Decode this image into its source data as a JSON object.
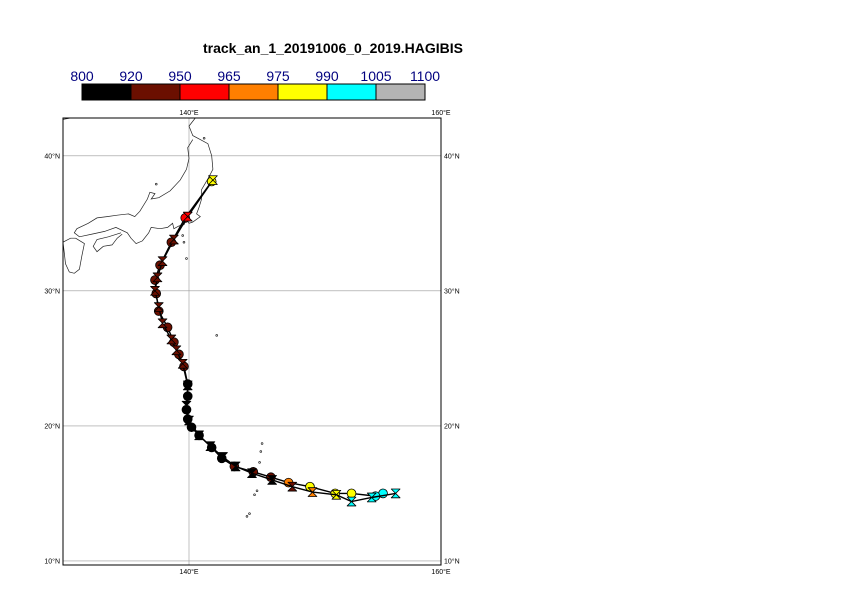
{
  "title": "track_an_1_20191006_0_2019.HAGIBIS",
  "colorbar": {
    "labels": [
      "800",
      "920",
      "950",
      "965",
      "975",
      "990",
      "1005",
      "1100"
    ],
    "colors": [
      "#000000",
      "#6b0f00",
      "#ff0000",
      "#ff7f00",
      "#ffff00",
      "#00ffff",
      "#b4b4b4"
    ]
  },
  "map": {
    "lon_range": [
      130,
      160
    ],
    "lat_range": [
      9.7,
      42.8
    ],
    "lon_ticks": [
      {
        "value": 140,
        "label": "140°E"
      },
      {
        "value": 160,
        "label": "160°E"
      }
    ],
    "lat_ticks": [
      {
        "value": 10,
        "label": "10°N"
      },
      {
        "value": 20,
        "label": "20°N"
      },
      {
        "value": 30,
        "label": "30°N"
      },
      {
        "value": 40,
        "label": "40°N"
      }
    ],
    "grid": true
  },
  "chart_data": {
    "type": "track",
    "track_a": {
      "marker": "circle",
      "points": [
        {
          "lon": 155.4,
          "lat": 15.0,
          "c": 5
        },
        {
          "lon": 154.8,
          "lat": 14.8,
          "c": 5
        },
        {
          "lon": 152.9,
          "lat": 15.0,
          "c": 4
        },
        {
          "lon": 151.6,
          "lat": 15.0,
          "c": 4
        },
        {
          "lon": 149.6,
          "lat": 15.5,
          "c": 4
        },
        {
          "lon": 147.9,
          "lat": 15.8,
          "c": 3
        },
        {
          "lon": 146.5,
          "lat": 16.2,
          "c": 1
        },
        {
          "lon": 145.1,
          "lat": 16.6,
          "c": 1
        },
        {
          "lon": 143.6,
          "lat": 17.0,
          "c": 1
        },
        {
          "lon": 142.6,
          "lat": 17.6,
          "c": 0
        },
        {
          "lon": 141.8,
          "lat": 18.4,
          "c": 0
        },
        {
          "lon": 140.8,
          "lat": 19.3,
          "c": 0
        },
        {
          "lon": 140.2,
          "lat": 19.9,
          "c": 0
        },
        {
          "lon": 139.9,
          "lat": 20.5,
          "c": 0
        },
        {
          "lon": 139.8,
          "lat": 21.2,
          "c": 0
        },
        {
          "lon": 139.9,
          "lat": 22.2,
          "c": 0
        },
        {
          "lon": 139.9,
          "lat": 23.1,
          "c": 0
        },
        {
          "lon": 139.6,
          "lat": 24.4,
          "c": 1
        },
        {
          "lon": 139.2,
          "lat": 25.3,
          "c": 1
        },
        {
          "lon": 138.8,
          "lat": 26.2,
          "c": 1
        },
        {
          "lon": 138.3,
          "lat": 27.3,
          "c": 1
        },
        {
          "lon": 137.6,
          "lat": 28.5,
          "c": 1
        },
        {
          "lon": 137.4,
          "lat": 29.8,
          "c": 1
        },
        {
          "lon": 137.3,
          "lat": 30.8,
          "c": 1
        },
        {
          "lon": 137.7,
          "lat": 31.9,
          "c": 1
        },
        {
          "lon": 138.6,
          "lat": 33.6,
          "c": 1
        },
        {
          "lon": 139.7,
          "lat": 35.4,
          "c": 2
        },
        {
          "lon": 141.8,
          "lat": 38.1,
          "c": 4
        }
      ]
    },
    "track_b": {
      "marker": "hourglass",
      "points": [
        {
          "lon": 156.4,
          "lat": 15.0,
          "c": 5
        },
        {
          "lon": 154.5,
          "lat": 14.7,
          "c": 5
        },
        {
          "lon": 152.9,
          "lat": 14.4,
          "c": 5
        },
        {
          "lon": 151.7,
          "lat": 14.9,
          "c": 4
        },
        {
          "lon": 149.8,
          "lat": 15.1,
          "c": 3
        },
        {
          "lon": 148.2,
          "lat": 15.5,
          "c": 1
        },
        {
          "lon": 146.6,
          "lat": 16.0,
          "c": 0
        },
        {
          "lon": 145.0,
          "lat": 16.5,
          "c": 0
        },
        {
          "lon": 143.7,
          "lat": 17.0,
          "c": 0
        },
        {
          "lon": 142.7,
          "lat": 17.7,
          "c": 0
        },
        {
          "lon": 141.7,
          "lat": 18.5,
          "c": 0
        },
        {
          "lon": 140.8,
          "lat": 19.3,
          "c": 0
        },
        {
          "lon": 140.0,
          "lat": 20.4,
          "c": 0
        },
        {
          "lon": 139.8,
          "lat": 21.5,
          "c": 0
        },
        {
          "lon": 139.9,
          "lat": 23.0,
          "c": 0
        },
        {
          "lon": 139.5,
          "lat": 24.6,
          "c": 1
        },
        {
          "lon": 139.0,
          "lat": 25.6,
          "c": 1
        },
        {
          "lon": 138.6,
          "lat": 26.4,
          "c": 1
        },
        {
          "lon": 137.9,
          "lat": 27.6,
          "c": 1
        },
        {
          "lon": 137.6,
          "lat": 28.8,
          "c": 1
        },
        {
          "lon": 137.3,
          "lat": 30.0,
          "c": 1
        },
        {
          "lon": 137.5,
          "lat": 31.0,
          "c": 1
        },
        {
          "lon": 137.9,
          "lat": 32.2,
          "c": 1
        },
        {
          "lon": 138.8,
          "lat": 33.8,
          "c": 1
        },
        {
          "lon": 139.9,
          "lat": 35.5,
          "c": 2
        },
        {
          "lon": 141.9,
          "lat": 38.2,
          "c": 4
        }
      ]
    }
  }
}
